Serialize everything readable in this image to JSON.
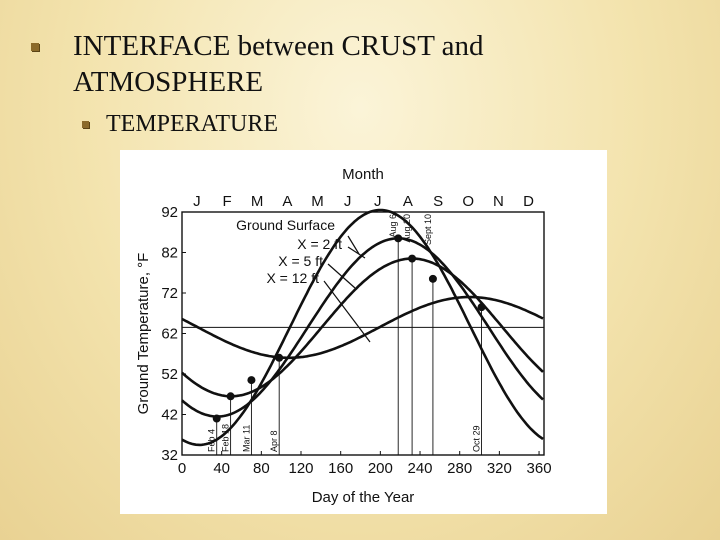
{
  "slide": {
    "title": "INTERFACE between CRUST and ATMOSPHERE",
    "subtitle": "TEMPERATURE"
  },
  "chart_data": {
    "type": "line",
    "top_axis_title": "Month",
    "months": [
      "J",
      "F",
      "M",
      "A",
      "M",
      "J",
      "J",
      "A",
      "S",
      "O",
      "N",
      "D"
    ],
    "xlabel": "Day of the Year",
    "ylabel": "Ground Temperature, °F",
    "xlim": [
      0,
      365
    ],
    "ylim": [
      32,
      92
    ],
    "xticks": [
      0,
      40,
      80,
      120,
      160,
      200,
      240,
      280,
      320,
      360
    ],
    "yticks": [
      32,
      42,
      52,
      62,
      72,
      82,
      92
    ],
    "mean_line": 63.5,
    "grid": false,
    "series": [
      {
        "name": "Ground Surface",
        "mean": 63.5,
        "amplitude": 29,
        "peak_day": 200
      },
      {
        "name": "X = 2 ft",
        "mean": 63.5,
        "amplitude": 22,
        "peak_day": 218
      },
      {
        "name": "X = 5 ft",
        "mean": 63.5,
        "amplitude": 17,
        "peak_day": 232
      },
      {
        "name": "X = 12 ft",
        "mean": 63.5,
        "amplitude": 7.5,
        "peak_day": 290
      }
    ],
    "markers": [
      {
        "day": 35,
        "temp": 41,
        "label": "Feb 4"
      },
      {
        "day": 49,
        "temp": 46.5,
        "label": "Feb 18"
      },
      {
        "day": 70,
        "temp": 50.5,
        "label": "Mar 11"
      },
      {
        "day": 98,
        "temp": 56,
        "label": "Apr 8"
      },
      {
        "day": 218,
        "temp": 85.5,
        "label": "Aug 6"
      },
      {
        "day": 232,
        "temp": 80.5,
        "label": "Aug 20"
      },
      {
        "day": 253,
        "temp": 75.5,
        "label": "Sept 10"
      },
      {
        "day": 302,
        "temp": 68.5,
        "label": "Oct 29"
      }
    ]
  }
}
